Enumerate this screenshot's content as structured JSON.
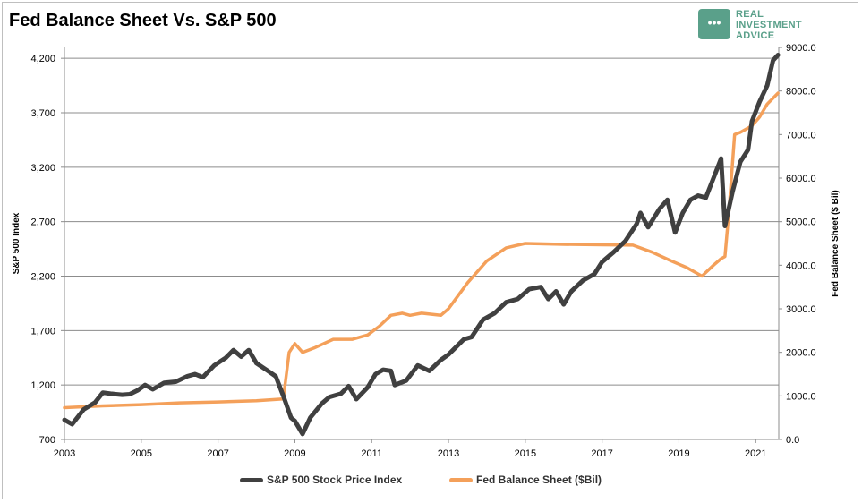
{
  "chart_data": {
    "type": "line",
    "title": "Fed Balance Sheet Vs. S&P 500",
    "logo": {
      "line1": "REAL",
      "line2": "INVESTMENT",
      "line3": "ADVICE",
      "color": "#5aa08a"
    },
    "x_range": [
      2003,
      2021.6
    ],
    "x_ticks": [
      "2003",
      "2005",
      "2007",
      "2009",
      "2011",
      "2013",
      "2015",
      "2017",
      "2019",
      "2021"
    ],
    "y_left": {
      "label": "S&P 500 Index",
      "range": [
        700,
        4300
      ],
      "ticks": [
        "700",
        "1,200",
        "1,700",
        "2,200",
        "2,700",
        "3,200",
        "3,700",
        "4,200"
      ]
    },
    "y_right": {
      "label": "Fed Balance Sheet ($ Bil)",
      "range": [
        0,
        9000
      ],
      "ticks": [
        "0.0",
        "1000.0",
        "2000.0",
        "3000.0",
        "4000.0",
        "5000.0",
        "6000.0",
        "7000.0",
        "8000.0",
        "9000.0"
      ]
    },
    "grid": true,
    "legend_position": "bottom",
    "series": [
      {
        "name": "S&P 500 Stock Price Index",
        "axis": "left",
        "color": "#404040",
        "points": [
          [
            2003.0,
            880
          ],
          [
            2003.2,
            840
          ],
          [
            2003.5,
            975
          ],
          [
            2003.8,
            1040
          ],
          [
            2004.0,
            1130
          ],
          [
            2004.2,
            1120
          ],
          [
            2004.5,
            1110
          ],
          [
            2004.7,
            1115
          ],
          [
            2004.9,
            1150
          ],
          [
            2005.1,
            1200
          ],
          [
            2005.3,
            1160
          ],
          [
            2005.6,
            1220
          ],
          [
            2005.9,
            1230
          ],
          [
            2006.2,
            1280
          ],
          [
            2006.4,
            1300
          ],
          [
            2006.6,
            1270
          ],
          [
            2006.9,
            1380
          ],
          [
            2007.2,
            1450
          ],
          [
            2007.4,
            1520
          ],
          [
            2007.6,
            1460
          ],
          [
            2007.8,
            1520
          ],
          [
            2008.0,
            1400
          ],
          [
            2008.3,
            1330
          ],
          [
            2008.5,
            1280
          ],
          [
            2008.7,
            1100
          ],
          [
            2008.9,
            900
          ],
          [
            2009.0,
            870
          ],
          [
            2009.2,
            750
          ],
          [
            2009.4,
            900
          ],
          [
            2009.7,
            1030
          ],
          [
            2009.9,
            1090
          ],
          [
            2010.2,
            1120
          ],
          [
            2010.4,
            1190
          ],
          [
            2010.6,
            1070
          ],
          [
            2010.9,
            1180
          ],
          [
            2011.1,
            1300
          ],
          [
            2011.3,
            1340
          ],
          [
            2011.5,
            1330
          ],
          [
            2011.6,
            1200
          ],
          [
            2011.9,
            1240
          ],
          [
            2012.2,
            1380
          ],
          [
            2012.5,
            1330
          ],
          [
            2012.8,
            1430
          ],
          [
            2013.0,
            1480
          ],
          [
            2013.4,
            1620
          ],
          [
            2013.6,
            1640
          ],
          [
            2013.9,
            1800
          ],
          [
            2014.2,
            1860
          ],
          [
            2014.5,
            1960
          ],
          [
            2014.8,
            1990
          ],
          [
            2015.1,
            2080
          ],
          [
            2015.4,
            2100
          ],
          [
            2015.6,
            1990
          ],
          [
            2015.8,
            2060
          ],
          [
            2016.0,
            1940
          ],
          [
            2016.2,
            2060
          ],
          [
            2016.5,
            2160
          ],
          [
            2016.8,
            2220
          ],
          [
            2017.0,
            2330
          ],
          [
            2017.3,
            2420
          ],
          [
            2017.6,
            2520
          ],
          [
            2017.9,
            2680
          ],
          [
            2018.0,
            2780
          ],
          [
            2018.2,
            2650
          ],
          [
            2018.5,
            2820
          ],
          [
            2018.7,
            2900
          ],
          [
            2018.9,
            2600
          ],
          [
            2019.1,
            2780
          ],
          [
            2019.3,
            2900
          ],
          [
            2019.5,
            2940
          ],
          [
            2019.7,
            2920
          ],
          [
            2019.9,
            3100
          ],
          [
            2020.1,
            3280
          ],
          [
            2020.2,
            2660
          ],
          [
            2020.4,
            2980
          ],
          [
            2020.6,
            3250
          ],
          [
            2020.8,
            3360
          ],
          [
            2020.9,
            3620
          ],
          [
            2021.1,
            3800
          ],
          [
            2021.3,
            3950
          ],
          [
            2021.45,
            4180
          ],
          [
            2021.58,
            4230
          ]
        ]
      },
      {
        "name": "Fed Balance Sheet ($Bil)",
        "axis": "right",
        "color": "#f4a05a",
        "points": [
          [
            2003.0,
            730
          ],
          [
            2004.0,
            770
          ],
          [
            2005.0,
            800
          ],
          [
            2006.0,
            840
          ],
          [
            2007.0,
            860
          ],
          [
            2008.0,
            890
          ],
          [
            2008.7,
            930
          ],
          [
            2008.85,
            2000
          ],
          [
            2009.0,
            2200
          ],
          [
            2009.2,
            2000
          ],
          [
            2009.5,
            2100
          ],
          [
            2010.0,
            2300
          ],
          [
            2010.5,
            2300
          ],
          [
            2010.9,
            2400
          ],
          [
            2011.2,
            2600
          ],
          [
            2011.5,
            2850
          ],
          [
            2011.8,
            2900
          ],
          [
            2012.0,
            2850
          ],
          [
            2012.3,
            2900
          ],
          [
            2012.8,
            2850
          ],
          [
            2013.0,
            3000
          ],
          [
            2013.5,
            3600
          ],
          [
            2014.0,
            4100
          ],
          [
            2014.5,
            4400
          ],
          [
            2015.0,
            4500
          ],
          [
            2016.0,
            4480
          ],
          [
            2017.0,
            4470
          ],
          [
            2017.8,
            4460
          ],
          [
            2018.3,
            4300
          ],
          [
            2018.8,
            4100
          ],
          [
            2019.2,
            3950
          ],
          [
            2019.6,
            3750
          ],
          [
            2019.9,
            4000
          ],
          [
            2020.1,
            4150
          ],
          [
            2020.2,
            4200
          ],
          [
            2020.3,
            5200
          ],
          [
            2020.45,
            7000
          ],
          [
            2020.6,
            7050
          ],
          [
            2020.9,
            7200
          ],
          [
            2021.1,
            7400
          ],
          [
            2021.3,
            7700
          ],
          [
            2021.58,
            7950
          ]
        ]
      }
    ]
  }
}
